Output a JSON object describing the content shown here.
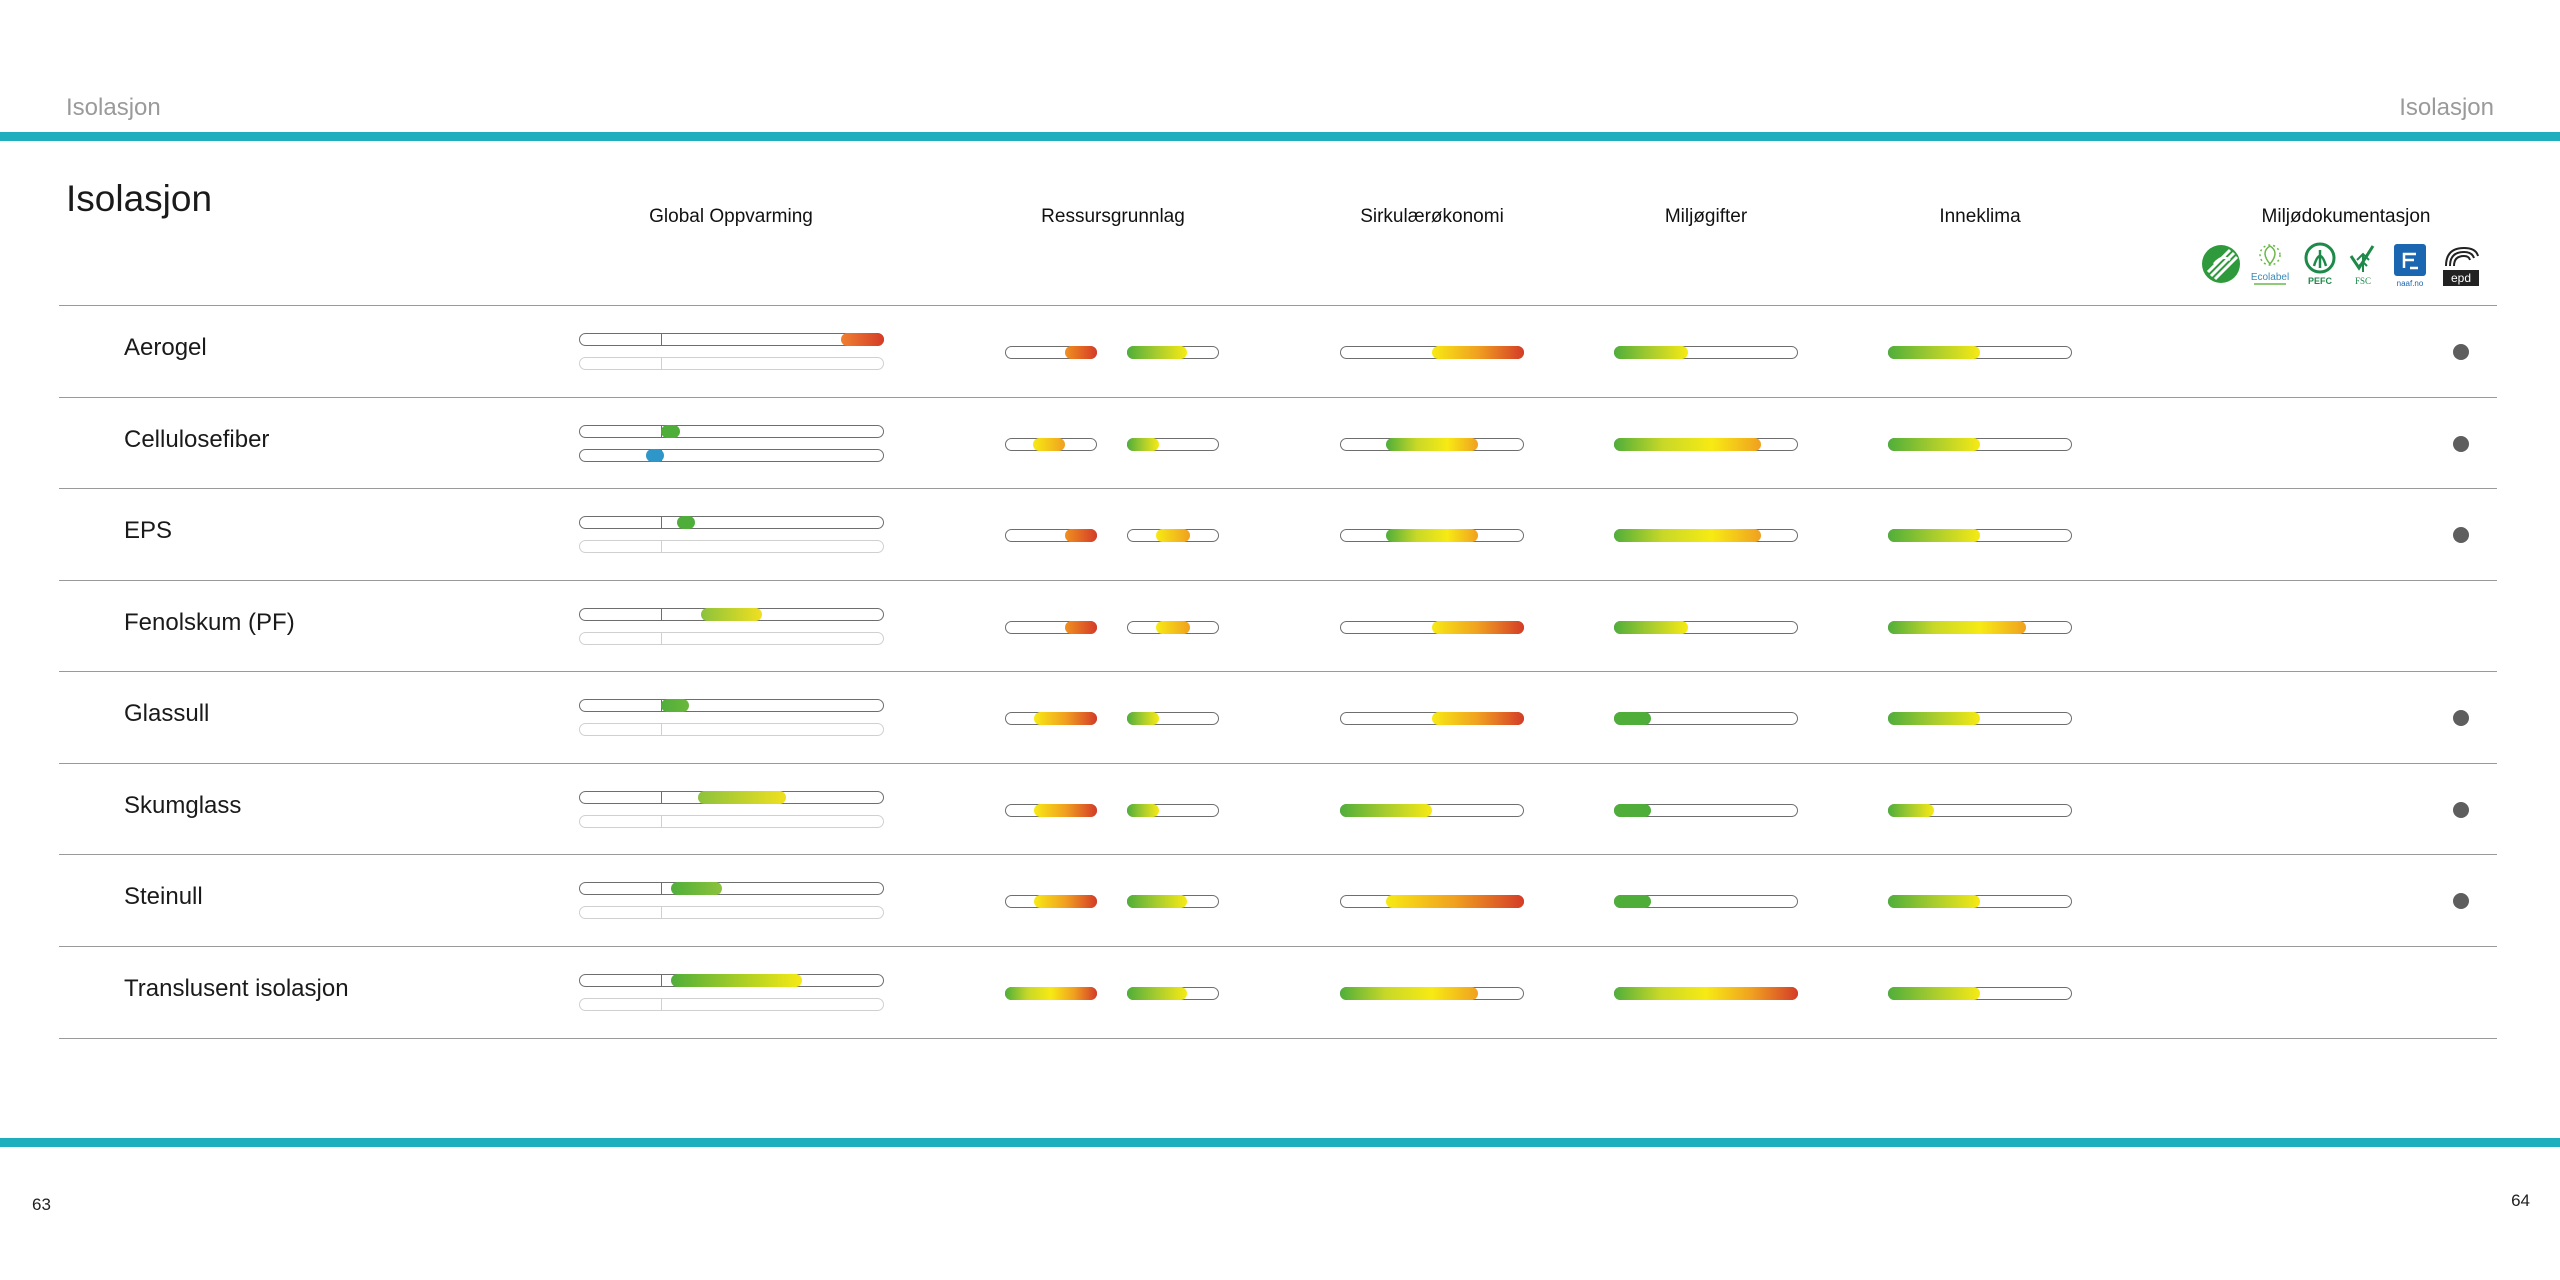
{
  "header": {
    "left_title": "Isolasjon",
    "right_title": "Isolasjon"
  },
  "footer": {
    "left_page": "63",
    "right_page": "64"
  },
  "page_title": "Isolasjon",
  "columns": {
    "global": "Global Oppvarming",
    "ressurs": "Ressursgrunnlag",
    "sirkular": "Sirkulærøkonomi",
    "miljo": "Miljøgifter",
    "inneklima": "Inneklima",
    "dok": "Miljødokumentasjon"
  },
  "logos": {
    "nordic": "Nordic Swan ecolabel",
    "eu": "Ecolabel",
    "pefc": "PEFC",
    "fsc": "FSC",
    "naaf": "naaf.no",
    "epd": "epd"
  },
  "colors": {
    "accent": "#1eaebe",
    "green": "#4fae3a",
    "yellow": "#f7ea14",
    "orange": "#f0a020",
    "red": "#d83a26",
    "blue": "#2e96c8",
    "dot": "#5e5e5e"
  },
  "rows": [
    {
      "name": "Aerogel",
      "global": [
        {
          "s": 0.86,
          "e": 1.0,
          "from": "#f08030",
          "to": "#d43c28"
        }
      ],
      "global2": null,
      "ressurs1": [
        0.65,
        1.0,
        "orange-red"
      ],
      "ressurs2": [
        0.0,
        0.65,
        "green-yellow"
      ],
      "sirkular": [
        0.5,
        1.0,
        "yellow-red"
      ],
      "miljo": [
        0.0,
        0.4,
        "green-yellow"
      ],
      "inneklima": [
        0.0,
        0.5,
        "green-yellow"
      ],
      "dok": true
    },
    {
      "name": "Cellulosefiber",
      "global": [
        {
          "s": 0.27,
          "e": 0.33,
          "from": "#4fae3a",
          "to": "#4fae3a"
        }
      ],
      "global2": [
        {
          "s": 0.22,
          "e": 0.28,
          "from": "#2e96c8",
          "to": "#2e96c8"
        }
      ],
      "ressurs1": [
        0.3,
        0.65,
        "yellow-orange"
      ],
      "ressurs2": [
        0.0,
        0.35,
        "green-yellow"
      ],
      "sirkular": [
        0.25,
        0.75,
        "green-yellow-orange"
      ],
      "miljo": [
        0.0,
        0.8,
        "green-yellow-orange"
      ],
      "inneklima": [
        0.0,
        0.5,
        "green-yellow"
      ],
      "dok": true
    },
    {
      "name": "EPS",
      "global": [
        {
          "s": 0.32,
          "e": 0.38,
          "from": "#4fae3a",
          "to": "#4fae3a"
        }
      ],
      "global2": null,
      "ressurs1": [
        0.65,
        1.0,
        "orange-red"
      ],
      "ressurs2": [
        0.32,
        0.68,
        "yellow-orange"
      ],
      "sirkular": [
        0.25,
        0.75,
        "green-yellow-orange"
      ],
      "miljo": [
        0.0,
        0.8,
        "green-yellow-orange"
      ],
      "inneklima": [
        0.0,
        0.5,
        "green-yellow"
      ],
      "dok": true
    },
    {
      "name": "Fenolskum (PF)",
      "global": [
        {
          "s": 0.4,
          "e": 0.6,
          "from": "#8cc23c",
          "to": "#f0e020"
        }
      ],
      "global2": null,
      "ressurs1": [
        0.65,
        1.0,
        "orange-red"
      ],
      "ressurs2": [
        0.32,
        0.68,
        "yellow-orange"
      ],
      "sirkular": [
        0.5,
        1.0,
        "yellow-red"
      ],
      "miljo": [
        0.0,
        0.4,
        "green-yellow"
      ],
      "inneklima": [
        0.0,
        0.75,
        "green-yellow-orange"
      ],
      "dok": false
    },
    {
      "name": "Glassull",
      "global": [
        {
          "s": 0.27,
          "e": 0.36,
          "from": "#4fae3a",
          "to": "#6ab83a"
        }
      ],
      "global2": null,
      "ressurs1": [
        0.32,
        1.0,
        "yellow-red"
      ],
      "ressurs2": [
        0.0,
        0.35,
        "green-yellow"
      ],
      "sirkular": [
        0.5,
        1.0,
        "yellow-red"
      ],
      "miljo": [
        0.0,
        0.2,
        "green"
      ],
      "inneklima": [
        0.0,
        0.5,
        "green-yellow"
      ],
      "dok": true
    },
    {
      "name": "Skumglass",
      "global": [
        {
          "s": 0.39,
          "e": 0.68,
          "from": "#8cc23c",
          "to": "#f0e020"
        }
      ],
      "global2": null,
      "ressurs1": [
        0.32,
        1.0,
        "yellow-red"
      ],
      "ressurs2": [
        0.0,
        0.35,
        "green-yellow"
      ],
      "sirkular": [
        0.0,
        0.5,
        "green-yellow"
      ],
      "miljo": [
        0.0,
        0.2,
        "green"
      ],
      "inneklima": [
        0.0,
        0.25,
        "green-yellow"
      ],
      "dok": true
    },
    {
      "name": "Steinull",
      "global": [
        {
          "s": 0.3,
          "e": 0.47,
          "from": "#4fae3a",
          "to": "#8cc23c"
        }
      ],
      "global2": null,
      "ressurs1": [
        0.32,
        1.0,
        "yellow-red"
      ],
      "ressurs2": [
        0.0,
        0.65,
        "green-yellow"
      ],
      "sirkular": [
        0.25,
        1.0,
        "yellow-red"
      ],
      "miljo": [
        0.0,
        0.2,
        "green"
      ],
      "inneklima": [
        0.0,
        0.5,
        "green-yellow"
      ],
      "dok": true
    },
    {
      "name": "Translusent isolasjon",
      "global": [
        {
          "s": 0.3,
          "e": 0.73,
          "from": "#4fae3a",
          "to": "#f7ea14"
        }
      ],
      "global2": null,
      "ressurs1": [
        0.0,
        1.0,
        "green-yellow-red"
      ],
      "ressurs2": [
        0.0,
        0.65,
        "green-yellow"
      ],
      "sirkular": [
        0.0,
        0.75,
        "green-yellow-orange"
      ],
      "miljo": [
        0.0,
        1.0,
        "green-yellow-red"
      ],
      "inneklima": [
        0.0,
        0.5,
        "green-yellow"
      ],
      "dok": false
    }
  ]
}
